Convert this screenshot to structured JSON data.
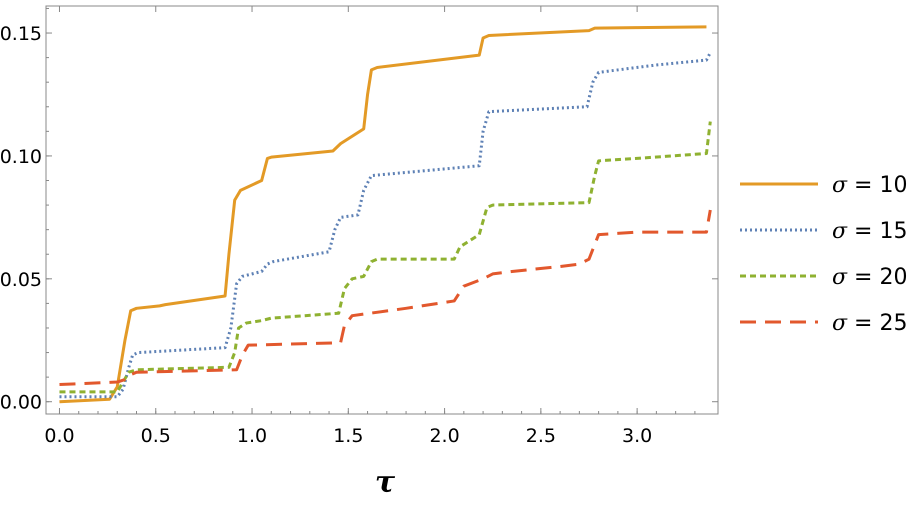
{
  "chart_data": {
    "type": "line",
    "title": "",
    "xlabel": "τ",
    "ylabel": "",
    "xlim": [
      -0.07,
      3.42
    ],
    "ylim": [
      -0.005,
      0.161
    ],
    "x_ticks": [
      0.0,
      0.5,
      1.0,
      1.5,
      2.0,
      2.5,
      3.0
    ],
    "x_tick_labels": [
      "0.0",
      "0.5",
      "1.0",
      "1.5",
      "2.0",
      "2.5",
      "3.0"
    ],
    "y_ticks": [
      0.0,
      0.05,
      0.1,
      0.15
    ],
    "y_tick_labels": [
      "0.00",
      "0.05",
      "0.10",
      "0.15"
    ],
    "grid": false,
    "legend_position": "right",
    "colors": [
      "#E39A26",
      "#5E81B5",
      "#8FB131",
      "#E2582D"
    ],
    "series": [
      {
        "name": "σ = 10",
        "symbol": "σ",
        "value": "10",
        "color": "#E39A26",
        "dash": "solid",
        "points": [
          [
            0.0,
            0.0
          ],
          [
            0.26,
            0.001
          ],
          [
            0.3,
            0.006
          ],
          [
            0.34,
            0.025
          ],
          [
            0.37,
            0.037
          ],
          [
            0.4,
            0.038
          ],
          [
            0.52,
            0.039
          ],
          [
            0.55,
            0.0395
          ],
          [
            0.86,
            0.043
          ],
          [
            0.88,
            0.06
          ],
          [
            0.91,
            0.082
          ],
          [
            0.94,
            0.086
          ],
          [
            1.05,
            0.09
          ],
          [
            1.08,
            0.099
          ],
          [
            1.1,
            0.0995
          ],
          [
            1.42,
            0.102
          ],
          [
            1.46,
            0.105
          ],
          [
            1.58,
            0.111
          ],
          [
            1.6,
            0.125
          ],
          [
            1.62,
            0.135
          ],
          [
            1.65,
            0.136
          ],
          [
            2.18,
            0.141
          ],
          [
            2.2,
            0.148
          ],
          [
            2.23,
            0.149
          ],
          [
            2.75,
            0.151
          ],
          [
            2.78,
            0.152
          ],
          [
            3.0,
            0.1522
          ],
          [
            3.36,
            0.1525
          ]
        ]
      },
      {
        "name": "σ = 15",
        "symbol": "σ",
        "value": "15",
        "color": "#5E81B5",
        "dash": "dotted",
        "points": [
          [
            0.0,
            0.002
          ],
          [
            0.3,
            0.002
          ],
          [
            0.33,
            0.005
          ],
          [
            0.36,
            0.014
          ],
          [
            0.38,
            0.019
          ],
          [
            0.41,
            0.02
          ],
          [
            0.86,
            0.022
          ],
          [
            0.89,
            0.03
          ],
          [
            0.92,
            0.048
          ],
          [
            0.95,
            0.051
          ],
          [
            1.05,
            0.053
          ],
          [
            1.08,
            0.056
          ],
          [
            1.11,
            0.057
          ],
          [
            1.4,
            0.061
          ],
          [
            1.43,
            0.07
          ],
          [
            1.46,
            0.075
          ],
          [
            1.55,
            0.076
          ],
          [
            1.58,
            0.086
          ],
          [
            1.62,
            0.092
          ],
          [
            2.18,
            0.096
          ],
          [
            2.2,
            0.11
          ],
          [
            2.23,
            0.118
          ],
          [
            2.74,
            0.12
          ],
          [
            2.77,
            0.13
          ],
          [
            2.8,
            0.134
          ],
          [
            3.1,
            0.137
          ],
          [
            3.36,
            0.139
          ],
          [
            3.38,
            0.142
          ]
        ]
      },
      {
        "name": "σ = 20",
        "symbol": "σ",
        "value": "20",
        "color": "#8FB131",
        "dash": "dashed",
        "points": [
          [
            0.0,
            0.004
          ],
          [
            0.3,
            0.004
          ],
          [
            0.33,
            0.008
          ],
          [
            0.36,
            0.012
          ],
          [
            0.4,
            0.013
          ],
          [
            0.88,
            0.014
          ],
          [
            0.91,
            0.02
          ],
          [
            0.93,
            0.03
          ],
          [
            0.97,
            0.032
          ],
          [
            1.05,
            0.033
          ],
          [
            1.1,
            0.034
          ],
          [
            1.45,
            0.036
          ],
          [
            1.48,
            0.046
          ],
          [
            1.52,
            0.05
          ],
          [
            1.58,
            0.051
          ],
          [
            1.62,
            0.057
          ],
          [
            1.65,
            0.058
          ],
          [
            2.05,
            0.058
          ],
          [
            2.08,
            0.063
          ],
          [
            2.12,
            0.065
          ],
          [
            2.18,
            0.068
          ],
          [
            2.22,
            0.079
          ],
          [
            2.25,
            0.08
          ],
          [
            2.75,
            0.081
          ],
          [
            2.78,
            0.092
          ],
          [
            2.8,
            0.098
          ],
          [
            3.0,
            0.099
          ],
          [
            3.36,
            0.101
          ],
          [
            3.38,
            0.114
          ]
        ]
      },
      {
        "name": "σ = 25",
        "symbol": "σ",
        "value": "25",
        "color": "#E2582D",
        "dash": "longdash",
        "points": [
          [
            0.0,
            0.007
          ],
          [
            0.3,
            0.008
          ],
          [
            0.34,
            0.009
          ],
          [
            0.37,
            0.011
          ],
          [
            0.4,
            0.012
          ],
          [
            0.92,
            0.013
          ],
          [
            0.95,
            0.019
          ],
          [
            0.98,
            0.023
          ],
          [
            1.46,
            0.024
          ],
          [
            1.48,
            0.031
          ],
          [
            1.52,
            0.035
          ],
          [
            1.8,
            0.038
          ],
          [
            2.05,
            0.041
          ],
          [
            2.1,
            0.047
          ],
          [
            2.2,
            0.05
          ],
          [
            2.25,
            0.052
          ],
          [
            2.35,
            0.053
          ],
          [
            2.6,
            0.055
          ],
          [
            2.7,
            0.056
          ],
          [
            2.75,
            0.058
          ],
          [
            2.8,
            0.068
          ],
          [
            3.0,
            0.069
          ],
          [
            3.36,
            0.069
          ],
          [
            3.38,
            0.078
          ]
        ]
      }
    ]
  }
}
